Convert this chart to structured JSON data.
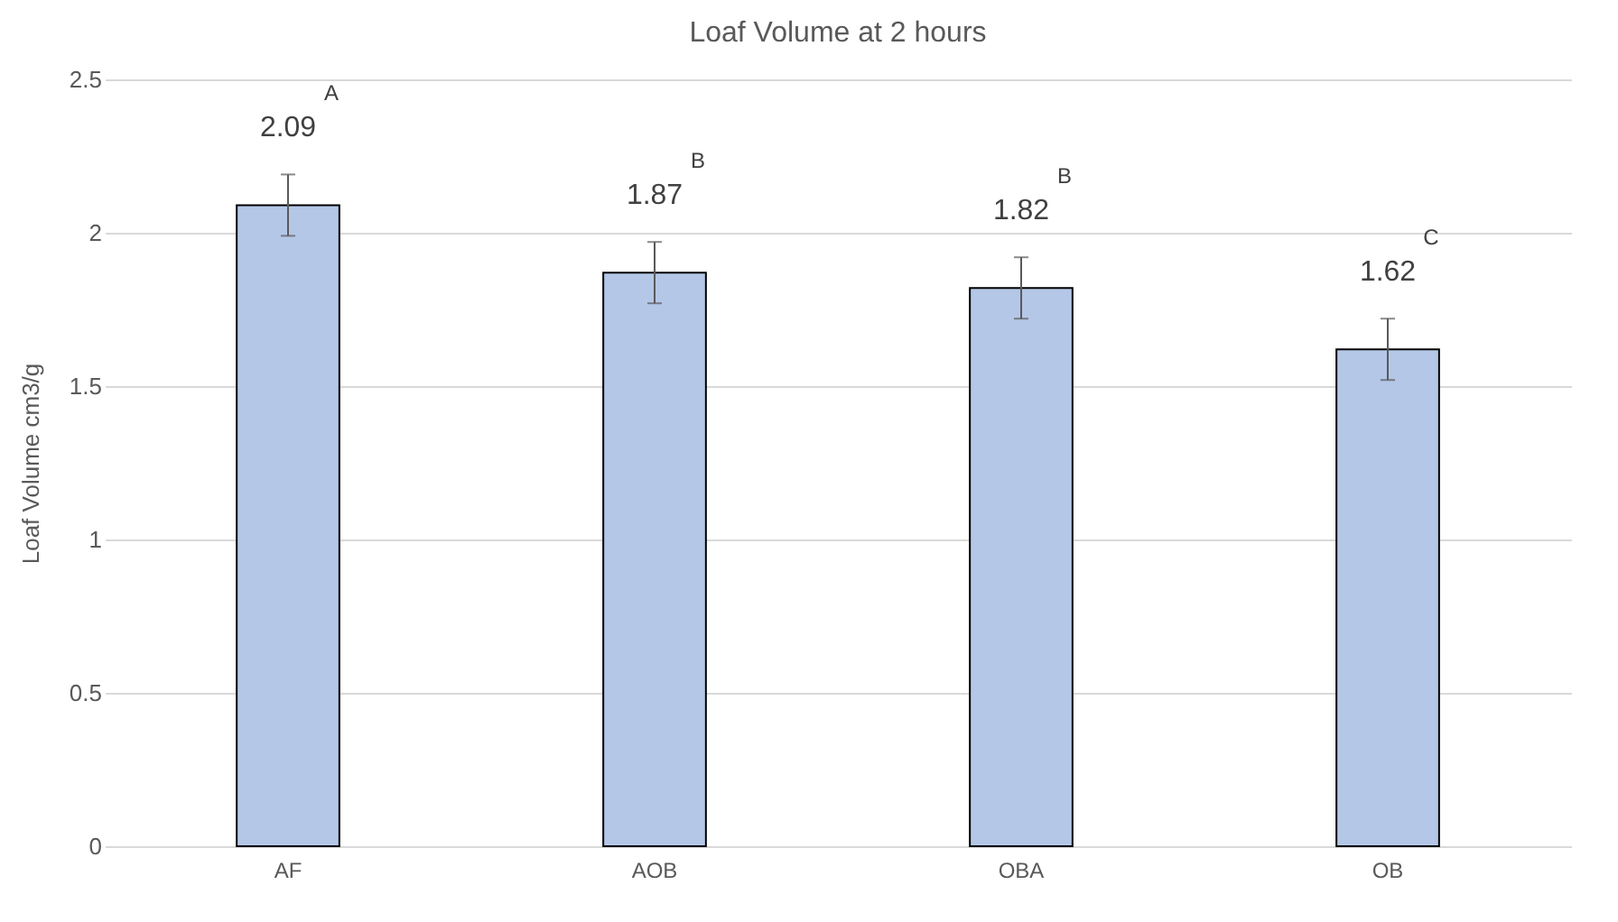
{
  "chart_data": {
    "type": "bar",
    "title": "Loaf Volume at 2 hours",
    "ylabel": "Loaf Volume cm3/g",
    "categories": [
      "AF",
      "AOB",
      "OBA",
      "OB"
    ],
    "values": [
      2.09,
      1.87,
      1.82,
      1.62
    ],
    "errors": [
      0.1,
      0.1,
      0.1,
      0.1
    ],
    "color": "#b4c7e7",
    "data_labels": true,
    "annotations": [
      "A",
      "B",
      "B",
      "C"
    ],
    "ylim": [
      0,
      2.5
    ],
    "yticks": [
      0,
      0.5,
      1,
      1.5,
      2,
      2.5
    ],
    "grid": "y"
  }
}
